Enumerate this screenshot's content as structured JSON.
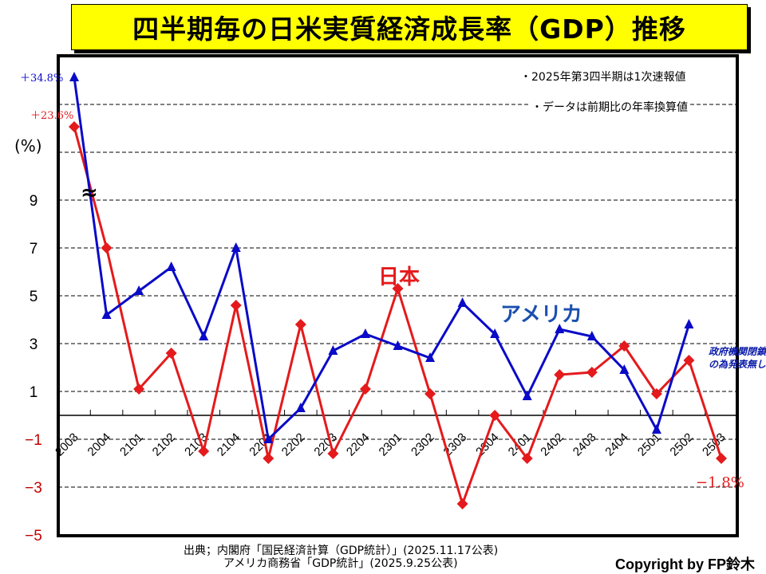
{
  "title": "四半期毎の日米実質経済成長率（GDP）推移",
  "notes": [
    "・2025年第3四半期は1次速報値",
    "・データは前期比の年率換算値"
  ],
  "source_lines": [
    "出典；内閣府「国民経済計算（GDP統計）」(2025.11.17公表)",
    "アメリカ商務省「GDP統計」(2025.9.25公表)"
  ],
  "copyright": "Copyright by FP鈴木",
  "colors": {
    "japan": "#e41a1c",
    "usa": "#0a0ac8",
    "usa_label": "#1a4fb0",
    "negative_tick": "#c00000",
    "title_bg": "#ffff00"
  },
  "series_labels": {
    "japan": "日本",
    "usa": "アメリカ"
  },
  "annotations": {
    "usa_first": "＋34.8%",
    "japan_first": "＋23.6%",
    "japan_last": "−1.8%",
    "usa_missing": "政府機関閉鎖の為発表無し",
    "axis_break": "≈"
  },
  "chart_data": {
    "type": "line",
    "title": "四半期毎の日米実質経済成長率（GDP）推移",
    "xlabel": "",
    "ylabel": "(%)",
    "categories": [
      "2003",
      "2004",
      "2101",
      "2102",
      "2103",
      "2104",
      "2201",
      "2202",
      "2203",
      "2204",
      "2301",
      "2302",
      "2303",
      "2304",
      "2401",
      "2402",
      "2403",
      "2404",
      "2501",
      "2502",
      "2503"
    ],
    "series": [
      {
        "name": "日本",
        "marker": "diamond",
        "values": [
          23.6,
          7.0,
          1.1,
          2.6,
          -1.5,
          4.6,
          -1.8,
          3.8,
          -1.6,
          1.1,
          5.3,
          0.9,
          -3.7,
          0.0,
          -1.8,
          1.7,
          1.8,
          2.9,
          0.9,
          2.3,
          -1.8
        ]
      },
      {
        "name": "アメリカ",
        "marker": "triangle",
        "values": [
          34.8,
          4.2,
          5.2,
          6.2,
          3.3,
          7.0,
          -1.0,
          0.3,
          2.7,
          3.4,
          2.9,
          2.4,
          4.7,
          3.4,
          0.8,
          3.6,
          3.3,
          1.9,
          -0.6,
          3.8,
          null
        ]
      }
    ],
    "yticks": [
      9,
      7,
      5,
      3,
      1,
      -1,
      -3,
      -5
    ],
    "ylim": [
      -5,
      13
    ],
    "axis_break_above": 10,
    "grid": true,
    "grid_style": "dashed",
    "legend": "inline labels"
  }
}
